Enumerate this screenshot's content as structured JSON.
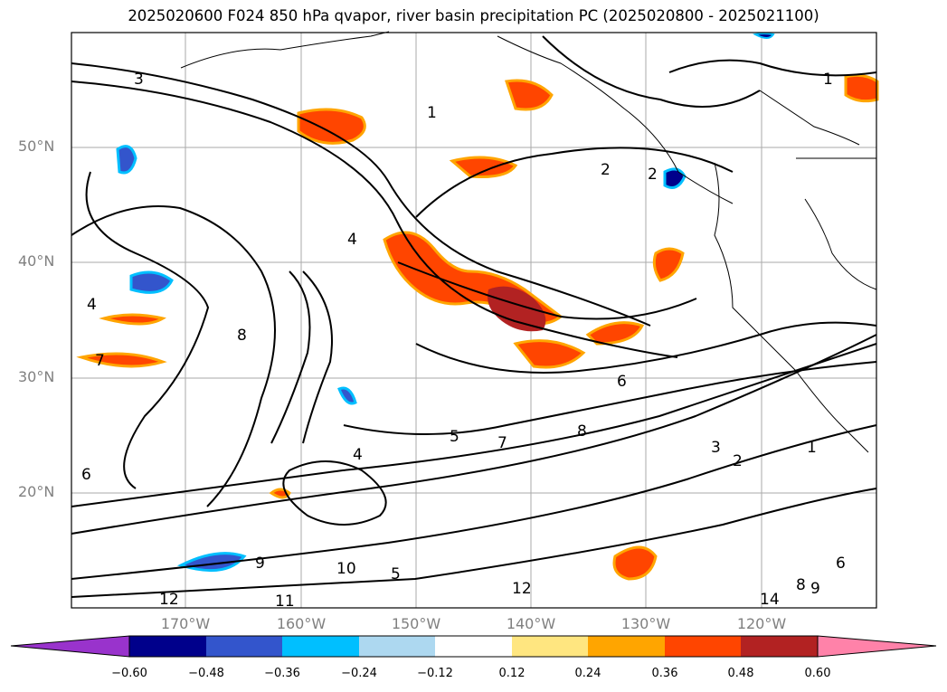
{
  "title": "2025020600 F024 850 hPa qvapor, river basin precipitation PC (2025020800 - 2025021100)",
  "lat_labels": [
    "50°N",
    "40°N",
    "30°N",
    "20°N"
  ],
  "lon_labels": [
    "170°W",
    "160°W",
    "150°W",
    "140°W",
    "130°W",
    "120°W"
  ],
  "contour_labels": [
    "3",
    "1",
    "2",
    "2",
    "4",
    "4",
    "8",
    "7",
    "6",
    "5",
    "7",
    "6",
    "8",
    "3",
    "2",
    "1",
    "9",
    "10",
    "12",
    "12",
    "11",
    "14",
    "8",
    "9",
    "6",
    "4",
    "5",
    "1"
  ],
  "colorbar": {
    "ticks": [
      "−0.60",
      "−0.48",
      "−0.36",
      "−0.24",
      "−0.12",
      "0.12",
      "0.24",
      "0.36",
      "0.48",
      "0.60"
    ],
    "colors": [
      "#9933cc",
      "#00008b",
      "#3355cc",
      "#00bfff",
      "#add8f0",
      "#ffffff",
      "#ffe680",
      "#ffa500",
      "#ff4500",
      "#b22222",
      "#ff82a9"
    ]
  }
}
